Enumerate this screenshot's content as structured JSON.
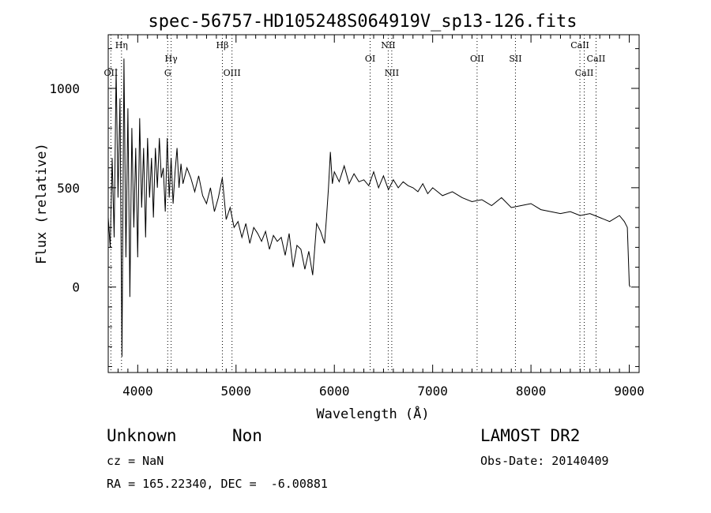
{
  "chart_data": {
    "type": "line",
    "title": "spec-56757-HD105248S064919V_sp13-126.fits",
    "xlabel": "Wavelength (Å)",
    "ylabel": "Flux (relative)",
    "xlim": [
      3700,
      9100
    ],
    "ylim": [
      -430,
      1270
    ],
    "x_ticks": [
      4000,
      5000,
      6000,
      7000,
      8000,
      9000
    ],
    "x_tick_labels": [
      "4000",
      "5000",
      "6000",
      "7000",
      "8000",
      "9000"
    ],
    "y_ticks": [
      0,
      500,
      1000
    ],
    "y_tick_labels": [
      "0",
      "500",
      "1000"
    ],
    "grid": false,
    "line_color": "#000000",
    "lines": [
      {
        "label": "OII",
        "x": 3727,
        "row": 2
      },
      {
        "label": "Hη",
        "x": 3835,
        "row": 0
      },
      {
        "label": "Hγ",
        "x": 4340,
        "row": 1
      },
      {
        "label": "G",
        "x": 4305,
        "row": 2
      },
      {
        "label": "Hβ",
        "x": 4861,
        "row": 0
      },
      {
        "label": "OIII",
        "x": 4959,
        "row": 2
      },
      {
        "label": "OI",
        "x": 6364,
        "row": 1
      },
      {
        "label": "NII",
        "x": 6548,
        "row": 0
      },
      {
        "label": "NII",
        "x": 6584,
        "row": 2
      },
      {
        "label": "OII",
        "x": 7452,
        "row": 1
      },
      {
        "label": "SII",
        "x": 7842,
        "row": 1
      },
      {
        "label": "CaII",
        "x": 8498,
        "row": 0
      },
      {
        "label": "CaII",
        "x": 8542,
        "row": 2
      },
      {
        "label": "CaII",
        "x": 8662,
        "row": 1
      }
    ],
    "series": [
      {
        "x": [
          3700,
          3720,
          3740,
          3760,
          3780,
          3800,
          3820,
          3840,
          3860,
          3880,
          3900,
          3920,
          3940,
          3960,
          3980,
          4000,
          4020,
          4040,
          4060,
          4080,
          4100,
          4120,
          4140,
          4160,
          4180,
          4200,
          4220,
          4240,
          4260,
          4280,
          4300,
          4320,
          4340,
          4360,
          4380,
          4400,
          4420,
          4440,
          4460,
          4480,
          4500,
          4540,
          4580,
          4620,
          4660,
          4700,
          4740,
          4780,
          4820,
          4860,
          4900,
          4940,
          4980,
          5020,
          5060,
          5100,
          5140,
          5180,
          5220,
          5260,
          5300,
          5340,
          5380,
          5420,
          5460,
          5500,
          5540,
          5580,
          5620,
          5660,
          5700,
          5740,
          5780,
          5820,
          5860,
          5900,
          5920,
          5940,
          5960,
          5980,
          6000,
          6050,
          6100,
          6150,
          6200,
          6250,
          6300,
          6350,
          6400,
          6450,
          6500,
          6550,
          6600,
          6650,
          6700,
          6750,
          6800,
          6850,
          6900,
          6950,
          7000,
          7100,
          7200,
          7300,
          7400,
          7500,
          7600,
          7700,
          7800,
          7900,
          8000,
          8100,
          8200,
          8300,
          8400,
          8500,
          8600,
          8700,
          8800,
          8900,
          8950,
          8980,
          9000,
          9010
        ],
        "y": [
          350,
          200,
          650,
          250,
          1100,
          450,
          950,
          -350,
          1150,
          150,
          900,
          -50,
          800,
          300,
          700,
          150,
          850,
          400,
          700,
          250,
          750,
          450,
          650,
          350,
          700,
          500,
          750,
          550,
          600,
          380,
          750,
          450,
          650,
          420,
          580,
          700,
          500,
          620,
          520,
          560,
          600,
          550,
          480,
          560,
          460,
          420,
          500,
          380,
          450,
          550,
          340,
          400,
          300,
          330,
          250,
          320,
          220,
          300,
          270,
          230,
          280,
          190,
          260,
          230,
          250,
          160,
          270,
          100,
          210,
          190,
          90,
          180,
          60,
          320,
          280,
          220,
          350,
          500,
          680,
          520,
          580,
          530,
          610,
          520,
          570,
          530,
          540,
          510,
          580,
          500,
          560,
          490,
          540,
          500,
          530,
          510,
          500,
          480,
          520,
          470,
          500,
          460,
          480,
          450,
          430,
          440,
          410,
          450,
          400,
          410,
          420,
          390,
          380,
          370,
          380,
          360,
          370,
          350,
          330,
          360,
          330,
          300,
          10,
          0
        ]
      }
    ]
  },
  "footer": {
    "class_text": "Unknown",
    "subclass_text": "Non",
    "survey_text": "LAMOST DR2",
    "cz_text": "cz = NaN",
    "obs_date_text": "Obs-Date: 20140409",
    "coords_text": "RA = 165.22340, DEC =  -6.00881"
  }
}
